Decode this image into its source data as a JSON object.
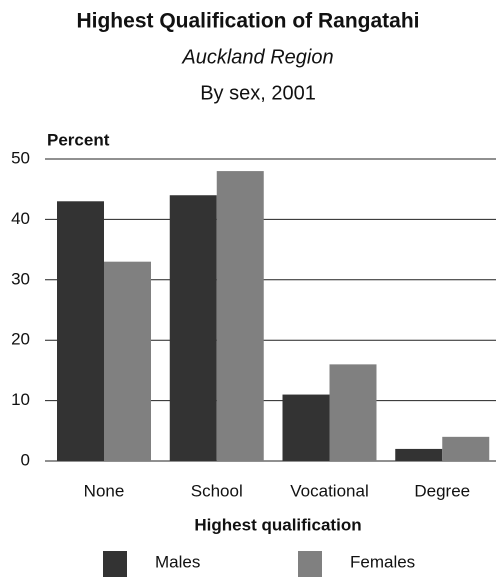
{
  "chart_data": {
    "type": "bar",
    "title": "Highest Qualification of Rangatahi",
    "subtitle": "Auckland Region",
    "subtitle2": "By sex, 2001",
    "y_label": "Percent",
    "x_label": "Highest qualification",
    "categories": [
      "None",
      "School",
      "Vocational",
      "Degree"
    ],
    "series": [
      {
        "name": "Males",
        "color": "#333333",
        "values": [
          43,
          44,
          11,
          2
        ]
      },
      {
        "name": "Females",
        "color": "#808080",
        "values": [
          33,
          48,
          16,
          4
        ]
      }
    ],
    "ylim": [
      0,
      50
    ],
    "yticks": [
      0,
      10,
      20,
      30,
      40,
      50
    ],
    "grid": true
  }
}
